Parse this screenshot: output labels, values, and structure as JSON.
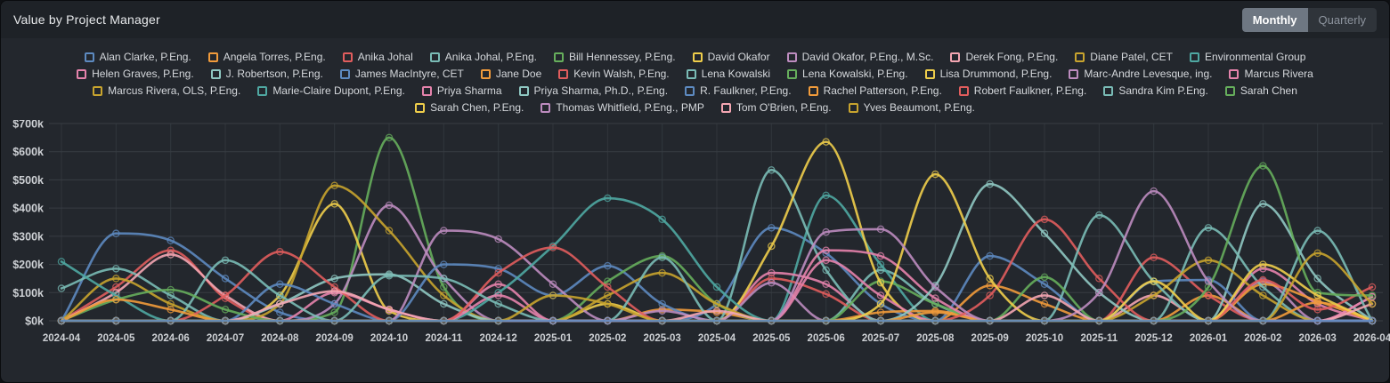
{
  "header": {
    "title": "Value by Project Manager",
    "toggle": {
      "monthly_label": "Monthly",
      "quarterly_label": "Quarterly",
      "active": "Monthly"
    }
  },
  "colors": {
    "panel_bg": "#23272d",
    "header_bg": "#1e2227",
    "grid_h": "#383d43",
    "grid_v": "#31363c",
    "axis_text": "#cdd0d4",
    "legend_text": "#d5d8dc",
    "active_button_bg": "#6e7782",
    "inactive_button_bg": "#2f343a"
  },
  "chart_data": {
    "type": "line",
    "title": "Value by Project Manager",
    "xlabel": "",
    "ylabel": "",
    "unit": "USD thousands (k)",
    "ylim_k": [
      0,
      700
    ],
    "grid": true,
    "legend_position": "top",
    "yticks": [
      "$0k",
      "$100k",
      "$200k",
      "$300k",
      "$400k",
      "$500k",
      "$600k",
      "$700k"
    ],
    "x": [
      "2024-04",
      "2024-05",
      "2024-06",
      "2024-07",
      "2024-08",
      "2024-09",
      "2024-10",
      "2024-11",
      "2024-12",
      "2025-01",
      "2025-02",
      "2025-03",
      "2025-04",
      "2025-05",
      "2025-06",
      "2025-07",
      "2025-08",
      "2025-09",
      "2025-10",
      "2025-11",
      "2025-12",
      "2026-01",
      "2026-02",
      "2026-03",
      "2026-04"
    ],
    "baseline_top_series": "R. Faulkner, P.Eng.",
    "series": [
      {
        "name": "Alan Clarke, P.Eng.",
        "color": "#5D8AC0",
        "values": [
          0,
          310,
          285,
          150,
          30,
          0,
          0,
          0,
          0,
          0,
          0,
          0,
          60,
          330,
          240,
          60,
          0,
          0,
          0,
          0,
          0,
          0,
          0,
          0,
          0
        ]
      },
      {
        "name": "Angela Torres, P.Eng.",
        "color": "#F19B3B",
        "values": [
          0,
          0,
          0,
          0,
          0,
          0,
          0,
          0,
          0,
          0,
          0,
          40,
          30,
          0,
          0,
          0,
          0,
          125,
          60,
          0,
          0,
          90,
          0,
          0,
          0
        ]
      },
      {
        "name": "Anika Johal",
        "color": "#E15D5D",
        "values": [
          0,
          120,
          250,
          80,
          0,
          0,
          0,
          0,
          0,
          0,
          0,
          0,
          0,
          0,
          0,
          0,
          0,
          0,
          0,
          0,
          225,
          90,
          0,
          0,
          0
        ]
      },
      {
        "name": "Anika Johal, P.Eng.",
        "color": "#7ABCB6",
        "values": [
          115,
          185,
          90,
          0,
          0,
          0,
          0,
          0,
          0,
          0,
          0,
          0,
          0,
          0,
          0,
          180,
          60,
          0,
          0,
          0,
          0,
          0,
          0,
          0,
          0
        ]
      },
      {
        "name": "Bill Hennessey, P.Eng.",
        "color": "#66AE5C",
        "values": [
          0,
          0,
          0,
          0,
          0,
          30,
          650,
          120,
          0,
          0,
          0,
          0,
          0,
          0,
          0,
          0,
          0,
          0,
          0,
          0,
          0,
          0,
          0,
          0,
          0
        ]
      },
      {
        "name": "David Okafor",
        "color": "#EFCE4B",
        "values": [
          0,
          0,
          0,
          0,
          90,
          415,
          35,
          0,
          0,
          0,
          60,
          0,
          0,
          0,
          0,
          0,
          0,
          0,
          0,
          0,
          0,
          0,
          0,
          0,
          0
        ]
      },
      {
        "name": "David Okafor, P.Eng., M.Sc.",
        "color": "#BD8CBF",
        "values": [
          0,
          0,
          0,
          0,
          0,
          60,
          410,
          150,
          0,
          0,
          0,
          0,
          0,
          0,
          0,
          0,
          0,
          0,
          0,
          0,
          0,
          0,
          140,
          0,
          0
        ]
      },
      {
        "name": "Derek Fong, P.Eng.",
        "color": "#F4A6B2",
        "values": [
          0,
          100,
          235,
          90,
          0,
          0,
          0,
          0,
          0,
          0,
          0,
          0,
          0,
          0,
          0,
          0,
          0,
          0,
          0,
          0,
          90,
          0,
          0,
          0,
          0
        ]
      },
      {
        "name": "Diane Patel, CET",
        "color": "#C8A42E",
        "values": [
          0,
          150,
          60,
          0,
          60,
          480,
          320,
          90,
          0,
          0,
          0,
          0,
          0,
          0,
          0,
          0,
          0,
          0,
          0,
          0,
          0,
          0,
          0,
          0,
          0
        ]
      },
      {
        "name": "Environmental Group",
        "color": "#4FA8A2",
        "values": [
          210,
          90,
          0,
          0,
          0,
          0,
          0,
          0,
          0,
          0,
          0,
          0,
          0,
          0,
          445,
          200,
          0,
          0,
          0,
          0,
          0,
          0,
          0,
          0,
          0
        ]
      },
      {
        "name": "Helen Graves, P.Eng.",
        "color": "#E583AC",
        "values": [
          0,
          0,
          0,
          0,
          0,
          100,
          40,
          0,
          0,
          0,
          0,
          0,
          0,
          170,
          130,
          0,
          0,
          0,
          0,
          0,
          0,
          0,
          185,
          60,
          0
        ]
      },
      {
        "name": "J. Robertson, P.Eng.",
        "color": "#8FC8C2",
        "values": [
          0,
          0,
          0,
          0,
          60,
          150,
          165,
          60,
          0,
          0,
          0,
          0,
          0,
          0,
          0,
          0,
          0,
          0,
          0,
          0,
          0,
          0,
          415,
          150,
          0
        ]
      },
      {
        "name": "James MacIntyre, CET",
        "color": "#5D8AC0",
        "values": [
          0,
          0,
          0,
          0,
          130,
          60,
          0,
          200,
          185,
          90,
          195,
          60,
          0,
          0,
          0,
          0,
          0,
          230,
          130,
          0,
          140,
          145,
          0,
          0,
          0
        ]
      },
      {
        "name": "Jane Doe",
        "color": "#F19B3B",
        "values": [
          0,
          0,
          0,
          0,
          0,
          0,
          0,
          0,
          0,
          0,
          0,
          0,
          0,
          0,
          0,
          30,
          35,
          0,
          0,
          0,
          0,
          0,
          130,
          70,
          0
        ]
      },
      {
        "name": "Kevin Walsh, P.Eng.",
        "color": "#E15D5D",
        "values": [
          0,
          0,
          0,
          90,
          245,
          120,
          0,
          0,
          0,
          0,
          0,
          0,
          0,
          150,
          95,
          0,
          0,
          0,
          0,
          0,
          0,
          0,
          0,
          0,
          0
        ]
      },
      {
        "name": "Lena Kowalski",
        "color": "#7ABCB6",
        "values": [
          0,
          0,
          0,
          215,
          90,
          0,
          0,
          0,
          0,
          0,
          0,
          0,
          0,
          535,
          180,
          0,
          0,
          0,
          0,
          0,
          0,
          330,
          120,
          0,
          0
        ]
      },
      {
        "name": "Lena Kowalski, P.Eng.",
        "color": "#66AE5C",
        "values": [
          0,
          75,
          110,
          40,
          0,
          0,
          0,
          0,
          0,
          0,
          140,
          230,
          60,
          0,
          0,
          140,
          60,
          0,
          0,
          0,
          0,
          0,
          0,
          0,
          0
        ]
      },
      {
        "name": "Lisa Drummond, P.Eng.",
        "color": "#EFCE4B",
        "values": [
          0,
          0,
          0,
          0,
          0,
          0,
          0,
          0,
          0,
          0,
          0,
          0,
          0,
          265,
          635,
          135,
          0,
          0,
          0,
          0,
          0,
          0,
          0,
          0,
          0
        ]
      },
      {
        "name": "Marc-Andre Levesque, ing.",
        "color": "#BD8CBF",
        "values": [
          0,
          0,
          0,
          0,
          0,
          0,
          0,
          320,
          290,
          130,
          0,
          35,
          0,
          135,
          0,
          0,
          0,
          0,
          0,
          0,
          0,
          0,
          0,
          0,
          0
        ]
      },
      {
        "name": "Marcus Rivera",
        "color": "#E583AC",
        "values": [
          0,
          0,
          0,
          0,
          0,
          0,
          0,
          0,
          130,
          0,
          0,
          0,
          0,
          0,
          215,
          90,
          0,
          0,
          0,
          0,
          0,
          0,
          0,
          0,
          85
        ]
      },
      {
        "name": "Marcus Rivera, OLS, P.Eng.",
        "color": "#C8A42E",
        "values": [
          0,
          0,
          0,
          0,
          0,
          0,
          0,
          0,
          0,
          0,
          90,
          170,
          60,
          0,
          0,
          0,
          0,
          0,
          0,
          0,
          90,
          215,
          90,
          0,
          0
        ]
      },
      {
        "name": "Marie-Claire Dupont, P.Eng.",
        "color": "#4FA8A2",
        "values": [
          0,
          0,
          0,
          0,
          0,
          0,
          0,
          0,
          100,
          265,
          435,
          360,
          120,
          0,
          0,
          0,
          0,
          0,
          0,
          0,
          0,
          0,
          0,
          0,
          0
        ]
      },
      {
        "name": "Priya Sharma",
        "color": "#E583AC",
        "values": [
          0,
          0,
          0,
          0,
          0,
          0,
          0,
          0,
          90,
          0,
          0,
          0,
          0,
          0,
          250,
          230,
          80,
          0,
          0,
          0,
          0,
          0,
          0,
          0,
          85
        ]
      },
      {
        "name": "Priya Sharma, Ph.D., P.Eng.",
        "color": "#8FC8C2",
        "values": [
          0,
          0,
          0,
          0,
          0,
          0,
          0,
          0,
          0,
          0,
          0,
          0,
          0,
          0,
          0,
          0,
          125,
          485,
          310,
          100,
          0,
          0,
          0,
          0,
          0
        ]
      },
      {
        "name": "R. Faulkner, P.Eng.",
        "color": "#5D8AC0",
        "values": [
          0,
          0,
          0,
          0,
          0,
          0,
          0,
          0,
          0,
          0,
          0,
          0,
          0,
          0,
          0,
          0,
          0,
          0,
          0,
          0,
          0,
          0,
          0,
          0,
          0
        ]
      },
      {
        "name": "Rachel Patterson, P.Eng.",
        "color": "#F19B3B",
        "values": [
          0,
          75,
          40,
          0,
          0,
          0,
          0,
          0,
          0,
          0,
          0,
          0,
          0,
          0,
          0,
          0,
          30,
          0,
          0,
          0,
          0,
          0,
          0,
          65,
          0
        ]
      },
      {
        "name": "Robert Faulkner, P.Eng.",
        "color": "#E15D5D",
        "values": [
          0,
          0,
          0,
          0,
          0,
          0,
          0,
          0,
          170,
          260,
          120,
          0,
          0,
          0,
          0,
          0,
          0,
          90,
          360,
          150,
          0,
          0,
          145,
          40,
          120
        ]
      },
      {
        "name": "Sandra Kim P.Eng.",
        "color": "#7ABCB6",
        "values": [
          0,
          0,
          0,
          0,
          0,
          0,
          160,
          150,
          60,
          0,
          0,
          225,
          0,
          0,
          0,
          0,
          0,
          0,
          0,
          375,
          140,
          0,
          0,
          320,
          0
        ]
      },
      {
        "name": "Sarah Chen",
        "color": "#66AE5C",
        "values": [
          0,
          0,
          0,
          0,
          0,
          0,
          0,
          0,
          0,
          0,
          0,
          0,
          0,
          0,
          0,
          0,
          0,
          0,
          155,
          0,
          0,
          120,
          550,
          100,
          90
        ]
      },
      {
        "name": "Sarah Chen, P.Eng.",
        "color": "#EFCE4B",
        "values": [
          0,
          0,
          0,
          0,
          0,
          0,
          0,
          0,
          0,
          0,
          0,
          0,
          0,
          0,
          0,
          60,
          520,
          150,
          0,
          0,
          140,
          0,
          200,
          90,
          0
        ]
      },
      {
        "name": "Thomas Whitfield, P.Eng., PMP",
        "color": "#BD8CBF",
        "values": [
          0,
          0,
          0,
          0,
          0,
          0,
          0,
          0,
          0,
          0,
          0,
          0,
          0,
          0,
          315,
          325,
          120,
          0,
          0,
          100,
          460,
          140,
          0,
          0,
          0
        ]
      },
      {
        "name": "Tom O'Brien, P.Eng.",
        "color": "#F4A6B2",
        "values": [
          0,
          0,
          0,
          0,
          60,
          105,
          40,
          0,
          0,
          0,
          0,
          0,
          35,
          0,
          0,
          0,
          0,
          0,
          90,
          0,
          0,
          0,
          0,
          0,
          60
        ]
      },
      {
        "name": "Yves Beaumont, P.Eng.",
        "color": "#C8A42E",
        "values": [
          0,
          0,
          0,
          0,
          0,
          0,
          0,
          0,
          0,
          90,
          60,
          0,
          0,
          0,
          0,
          0,
          0,
          0,
          0,
          0,
          0,
          0,
          0,
          240,
          60
        ]
      }
    ]
  }
}
